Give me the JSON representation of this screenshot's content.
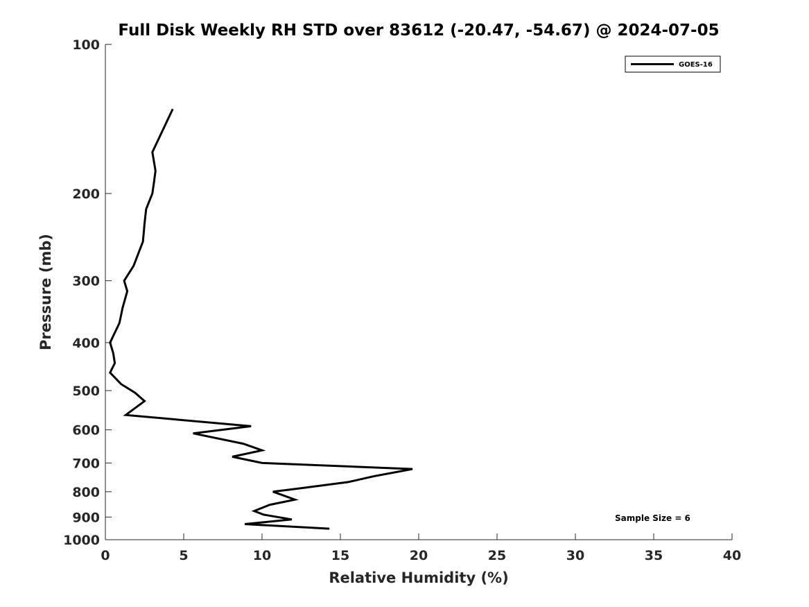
{
  "chart_data": {
    "type": "line",
    "title": "Full Disk Weekly RH STD over 83612 (-20.47, -54.67) @ 2024-07-05",
    "xlabel": "Relative Humidity (%)",
    "ylabel": "Pressure (mb)",
    "xlim": [
      0,
      40
    ],
    "ylim": [
      100,
      1000
    ],
    "y_scale": "log",
    "y_reversed": true,
    "x_ticks": [
      0,
      5,
      10,
      15,
      20,
      25,
      30,
      35,
      40
    ],
    "x_tick_labels": [
      "0",
      "5",
      "10",
      "15",
      "20",
      "25",
      "30",
      "35",
      "40"
    ],
    "y_ticks": [
      100,
      200,
      300,
      400,
      500,
      600,
      700,
      800,
      900,
      1000
    ],
    "y_tick_labels": [
      "100",
      "200",
      "300",
      "400",
      "500",
      "600",
      "700",
      "800",
      "900",
      "1000"
    ],
    "grid": false,
    "legend": "top-right",
    "annotation": "Sample Size = 6",
    "series": [
      {
        "name": "GOES-16",
        "color": "#000000",
        "x": [
          4.3,
          3.0,
          3.2,
          3.1,
          3.0,
          2.6,
          2.5,
          2.4,
          1.8,
          1.2,
          1.4,
          1.1,
          0.9,
          0.3,
          0.5,
          0.6,
          0.3,
          1.0,
          1.9,
          2.5,
          1.3,
          9.3,
          5.6,
          8.8,
          10.0,
          8.1,
          10.0,
          19.6,
          17.1,
          15.5,
          12.1,
          10.7,
          12.1,
          10.5,
          9.5,
          10.1,
          11.9,
          8.9,
          14.3
        ],
        "y": [
          135,
          165,
          180,
          190,
          200,
          215,
          230,
          250,
          280,
          300,
          315,
          340,
          365,
          400,
          420,
          440,
          460,
          485,
          505,
          525,
          560,
          590,
          610,
          640,
          660,
          680,
          700,
          720,
          745,
          765,
          790,
          800,
          830,
          850,
          875,
          890,
          910,
          930,
          950
        ]
      }
    ]
  }
}
